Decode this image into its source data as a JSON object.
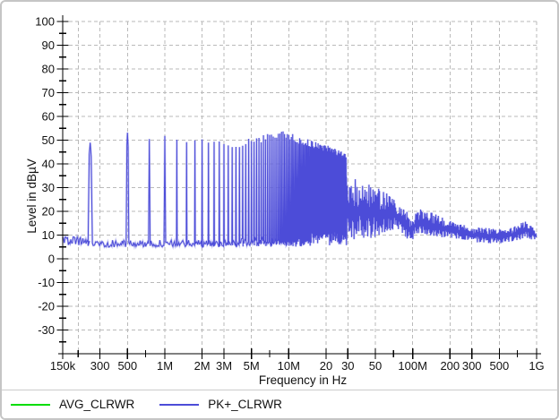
{
  "chart_data": {
    "type": "line",
    "title": "",
    "xlabel": "Frequency in Hz",
    "ylabel": "Level in dBµV",
    "x_scale": "log",
    "xlim_hz": [
      150000,
      1000000000
    ],
    "ylim_db": [
      -40,
      100
    ],
    "grid": "dashed",
    "legend_position": "bottom-left",
    "colors": {
      "pk_trace": "#4c4cd8",
      "pk_trace_halo": "#a3a3ec",
      "avg_trace": "#00dd00",
      "grid": "#bababa",
      "axis": "#000000",
      "frame": "#c5c5c5"
    },
    "y_axis": {
      "major_labels": [
        100,
        90,
        80,
        70,
        60,
        50,
        40,
        30,
        20,
        10,
        0,
        -10,
        -20,
        -30
      ],
      "major_step_db": 10,
      "minor_step_db": 5
    },
    "x_ticks": [
      {
        "hz": 150000,
        "label": "150k",
        "major": true,
        "grid": false
      },
      {
        "hz": 200000,
        "label": "",
        "major": false,
        "grid": true
      },
      {
        "hz": 300000,
        "label": "300",
        "major": true,
        "grid": true
      },
      {
        "hz": 500000,
        "label": "500",
        "major": true,
        "grid": true
      },
      {
        "hz": 700000,
        "label": "",
        "major": false,
        "grid": false
      },
      {
        "hz": 1000000,
        "label": "1M",
        "major": true,
        "grid": true
      },
      {
        "hz": 2000000,
        "label": "2M",
        "major": true,
        "grid": true
      },
      {
        "hz": 3000000,
        "label": "3M",
        "major": true,
        "grid": true
      },
      {
        "hz": 5000000,
        "label": "5M",
        "major": true,
        "grid": true
      },
      {
        "hz": 7000000,
        "label": "",
        "major": false,
        "grid": false
      },
      {
        "hz": 10000000,
        "label": "10M",
        "major": true,
        "grid": true
      },
      {
        "hz": 20000000,
        "label": "20",
        "major": true,
        "grid": true
      },
      {
        "hz": 30000000,
        "label": "30",
        "major": true,
        "grid": true
      },
      {
        "hz": 50000000,
        "label": "50",
        "major": true,
        "grid": true
      },
      {
        "hz": 70000000,
        "label": "",
        "major": false,
        "grid": false
      },
      {
        "hz": 100000000,
        "label": "100M",
        "major": true,
        "grid": true
      },
      {
        "hz": 200000000,
        "label": "200",
        "major": true,
        "grid": true
      },
      {
        "hz": 300000000,
        "label": "300",
        "major": true,
        "grid": true
      },
      {
        "hz": 500000000,
        "label": "500",
        "major": true,
        "grid": true
      },
      {
        "hz": 700000000,
        "label": "",
        "major": false,
        "grid": false
      },
      {
        "hz": 1000000000,
        "label": "1G",
        "major": true,
        "grid": true
      }
    ],
    "legend": [
      {
        "name": "AVG_CLRWR",
        "color": "#00dd00"
      },
      {
        "name": "PK+_CLRWR",
        "color": "#4c4cd8"
      }
    ],
    "series": [
      {
        "name": "AVG_CLRWR",
        "color": "#00dd00",
        "visible": false
      },
      {
        "name": "PK+_CLRWR",
        "color": "#4c4cd8",
        "visible": true,
        "model": {
          "baseline_db": 6.5,
          "baseline_noise_db": 1.5,
          "comb": {
            "fundamental_hz": 250000,
            "harmonics": 116,
            "peak_envelope_mhz_db": [
              [
                0.25,
                50
              ],
              [
                0.5,
                52
              ],
              [
                0.75,
                49
              ],
              [
                1,
                51
              ],
              [
                1.5,
                49.5
              ],
              [
                2,
                50
              ],
              [
                3,
                49
              ],
              [
                4,
                48
              ],
              [
                5,
                50.5
              ],
              [
                6,
                50.5
              ],
              [
                7,
                51.5
              ],
              [
                8,
                51.5
              ],
              [
                9,
                52.5
              ],
              [
                10,
                52
              ],
              [
                12,
                50
              ],
              [
                15,
                48.5
              ],
              [
                18,
                47
              ],
              [
                20,
                46.5
              ],
              [
                23,
                45.5
              ],
              [
                25,
                44.5
              ],
              [
                29,
                43.5
              ]
            ]
          },
          "broadband_mhz_db": {
            "start_mhz": 29,
            "end_mhz": 1000,
            "top": [
              [
                29,
                35.5
              ],
              [
                33,
                34
              ],
              [
                40,
                32.5
              ],
              [
                48,
                31
              ],
              [
                55,
                29.5
              ],
              [
                62,
                27.5
              ],
              [
                70,
                25.5
              ],
              [
                80,
                23
              ],
              [
                90,
                20.5
              ],
              [
                96,
                16.5
              ],
              [
                100,
                16.5
              ],
              [
                105,
                19
              ],
              [
                115,
                21
              ],
              [
                130,
                20.5
              ],
              [
                150,
                19
              ],
              [
                175,
                17.5
              ],
              [
                200,
                16
              ],
              [
                250,
                14.5
              ],
              [
                300,
                13.5
              ],
              [
                400,
                13
              ],
              [
                500,
                12.5
              ],
              [
                600,
                13
              ],
              [
                700,
                14.5
              ],
              [
                800,
                16
              ],
              [
                850,
                16
              ],
              [
                900,
                15
              ],
              [
                950,
                13.5
              ],
              [
                1000,
                12.5
              ]
            ],
            "bottom": [
              [
                29,
                7.5
              ],
              [
                35,
                8
              ],
              [
                45,
                8.5
              ],
              [
                55,
                9.5
              ],
              [
                65,
                11
              ],
              [
                72,
                12
              ],
              [
                80,
                10.5
              ],
              [
                88,
                9
              ],
              [
                95,
                7.5
              ],
              [
                100,
                8
              ],
              [
                105,
                9.5
              ],
              [
                115,
                10.5
              ],
              [
                130,
                10
              ],
              [
                150,
                9.5
              ],
              [
                175,
                9
              ],
              [
                200,
                8.5
              ],
              [
                250,
                8
              ],
              [
                300,
                7
              ],
              [
                400,
                6.5
              ],
              [
                500,
                6.5
              ],
              [
                600,
                7
              ],
              [
                700,
                7.5
              ],
              [
                800,
                8.5
              ],
              [
                900,
                8
              ],
              [
                1000,
                7
              ]
            ]
          }
        }
      }
    ]
  }
}
